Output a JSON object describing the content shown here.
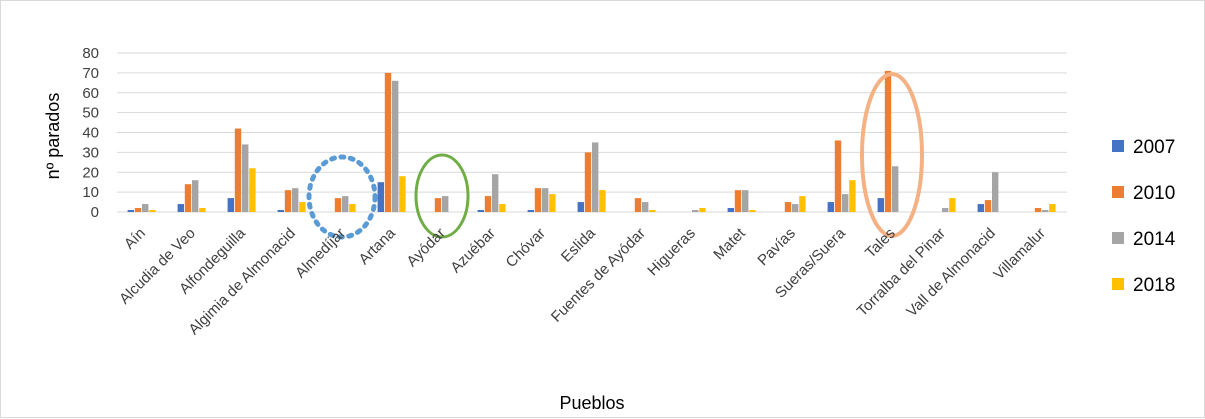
{
  "chart_data": {
    "type": "bar",
    "xlabel": "Pueblos",
    "ylabel": "nº parados",
    "ylim": [
      0,
      80
    ],
    "yticks": [
      "0",
      "10",
      "20",
      "30",
      "40",
      "50",
      "60",
      "70",
      "80"
    ],
    "grid": true,
    "legend_position": "right",
    "categories": [
      "Aín",
      "Alcudia de Veo",
      "Alfondeguilla",
      "Algimia de Almonacid",
      "Almedíjar",
      "Artana",
      "Ayódar",
      "Azuébar",
      "Chóvar",
      "Eslida",
      "Fuentes de Ayódar",
      "Higueras",
      "Matet",
      "Pavías",
      "Sueras/Suera",
      "Tales",
      "Torralba del Pinar",
      "Vall de Almonacid",
      "Villamalur"
    ],
    "series": [
      {
        "name": "2007",
        "color": "#4472c4",
        "values": [
          1,
          4,
          7,
          1,
          0,
          15,
          0,
          1,
          1,
          5,
          0,
          0,
          2,
          0,
          5,
          7,
          0,
          4,
          0
        ]
      },
      {
        "name": "2010",
        "color": "#ed7d31",
        "values": [
          2,
          14,
          42,
          11,
          7,
          70,
          7,
          8,
          12,
          30,
          7,
          0,
          11,
          5,
          36,
          71,
          0,
          6,
          2
        ]
      },
      {
        "name": "2014",
        "color": "#a5a5a5",
        "values": [
          4,
          16,
          34,
          12,
          8,
          66,
          8,
          19,
          12,
          35,
          5,
          1,
          11,
          4,
          9,
          23,
          2,
          20,
          1
        ]
      },
      {
        "name": "2018",
        "color": "#ffc000",
        "values": [
          1,
          2,
          22,
          5,
          4,
          18,
          0,
          4,
          9,
          11,
          1,
          2,
          1,
          8,
          16,
          0,
          7,
          0,
          4
        ]
      }
    ],
    "highlights": [
      {
        "category": "Almedíjar",
        "shape": "ellipse",
        "style": "dotted",
        "color": "#5b9bd5"
      },
      {
        "category": "Ayódar",
        "shape": "ellipse",
        "style": "solid",
        "color": "#70ad47"
      },
      {
        "category": "Tales",
        "shape": "ellipse",
        "style": "solid",
        "color": "#f4b183"
      }
    ]
  }
}
